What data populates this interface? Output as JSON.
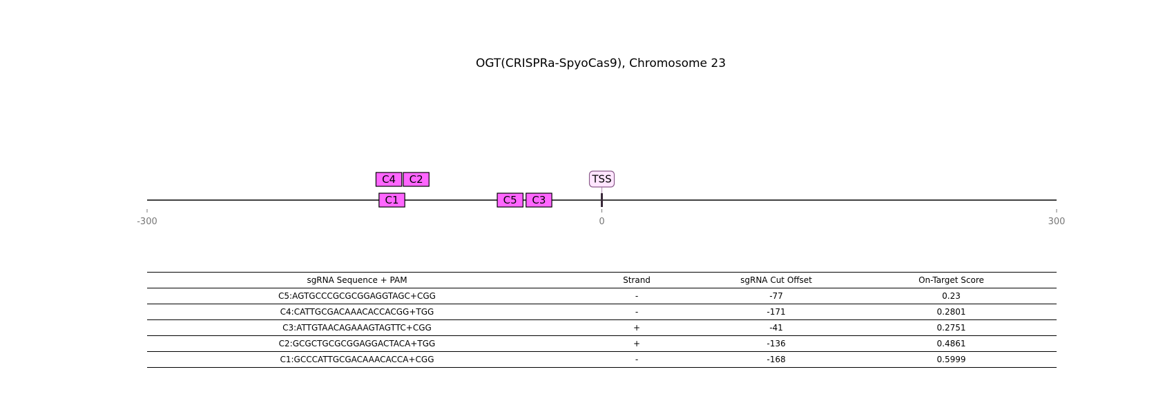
{
  "title": "OGT(CRISPRa-SpyoCas9), Chromosome 23",
  "axis": {
    "min": -300,
    "max": 300,
    "ticks": [
      {
        "value": -300,
        "label": "-300"
      },
      {
        "value": 0,
        "label": "0"
      },
      {
        "value": 300,
        "label": "300"
      }
    ]
  },
  "tss": {
    "label": "TSS",
    "position": 0
  },
  "guides": [
    {
      "id": "C1",
      "start": -147,
      "end": -130,
      "row": 0
    },
    {
      "id": "C5",
      "start": -69,
      "end": -52,
      "row": 0
    },
    {
      "id": "C3",
      "start": -50,
      "end": -33,
      "row": 0
    },
    {
      "id": "C4",
      "start": -149,
      "end": -132,
      "row": 1
    },
    {
      "id": "C2",
      "start": -131,
      "end": -114,
      "row": 1
    }
  ],
  "colors": {
    "guide_fill": "#ff66ff",
    "tss_fill": "#ffe6ff",
    "tss_marker": "#3a2a3a"
  },
  "table": {
    "headers": [
      "sgRNA Sequence + PAM",
      "Strand",
      "sgRNA Cut Offset",
      "On-Target Score"
    ],
    "rows": [
      {
        "sequence": "C5:AGTGCCCGCGCGGAGGTAGC+CGG",
        "strand": "-",
        "offset": "-77",
        "score": "0.23"
      },
      {
        "sequence": "C4:CATTGCGACAAACACCACGG+TGG",
        "strand": "-",
        "offset": "-171",
        "score": "0.2801"
      },
      {
        "sequence": "C3:ATTGTAACAGAAAGTAGTTC+CGG",
        "strand": "+",
        "offset": "-41",
        "score": "0.2751"
      },
      {
        "sequence": "C2:GCGCTGCGCGGAGGACTACA+TGG",
        "strand": "+",
        "offset": "-136",
        "score": "0.4861"
      },
      {
        "sequence": "C1:GCCCATTGCGACAAACACCA+CGG",
        "strand": "-",
        "offset": "-168",
        "score": "0.5999"
      }
    ]
  }
}
